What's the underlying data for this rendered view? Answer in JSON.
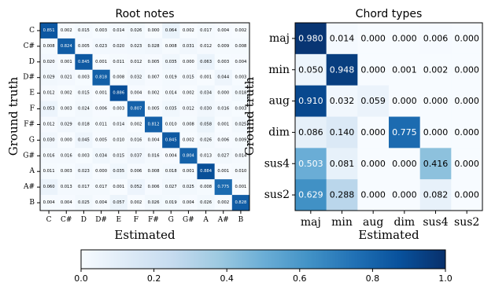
{
  "chart_data": [
    {
      "type": "heatmap",
      "title": "Root notes",
      "xlabel": "Estimated",
      "ylabel": "Ground truth",
      "x_categories": [
        "C",
        "C#",
        "D",
        "D#",
        "E",
        "F",
        "F#",
        "G",
        "G#",
        "A",
        "A#",
        "B"
      ],
      "y_categories": [
        "C",
        "C#",
        "D",
        "D#",
        "E",
        "F",
        "F#",
        "G",
        "G#",
        "A",
        "A#",
        "B"
      ],
      "values": [
        [
          0.851,
          0.002,
          0.015,
          0.003,
          0.014,
          0.026,
          0.0,
          0.064,
          0.002,
          0.017,
          0.004,
          0.002
        ],
        [
          0.008,
          0.824,
          0.005,
          0.023,
          0.02,
          0.023,
          0.028,
          0.008,
          0.031,
          0.012,
          0.009,
          0.008
        ],
        [
          0.02,
          0.001,
          0.845,
          0.001,
          0.011,
          0.012,
          0.005,
          0.035,
          0.0,
          0.063,
          0.003,
          0.004
        ],
        [
          0.029,
          0.021,
          0.003,
          0.818,
          0.008,
          0.032,
          0.007,
          0.019,
          0.015,
          0.001,
          0.044,
          0.003
        ],
        [
          0.012,
          0.002,
          0.015,
          0.001,
          0.886,
          0.004,
          0.002,
          0.014,
          0.002,
          0.034,
          0.0,
          0.018
        ],
        [
          0.053,
          0.003,
          0.024,
          0.006,
          0.003,
          0.807,
          0.005,
          0.035,
          0.012,
          0.03,
          0.016,
          0.003
        ],
        [
          0.012,
          0.029,
          0.018,
          0.011,
          0.014,
          0.002,
          0.812,
          0.01,
          0.008,
          0.058,
          0.001,
          0.025
        ],
        [
          0.03,
          0.0,
          0.045,
          0.005,
          0.01,
          0.016,
          0.004,
          0.845,
          0.002,
          0.026,
          0.006,
          0.009
        ],
        [
          0.016,
          0.016,
          0.003,
          0.034,
          0.015,
          0.037,
          0.016,
          0.004,
          0.804,
          0.013,
          0.027,
          0.014
        ],
        [
          0.011,
          0.003,
          0.023,
          0.0,
          0.035,
          0.006,
          0.008,
          0.018,
          0.001,
          0.884,
          0.001,
          0.01
        ],
        [
          0.06,
          0.013,
          0.017,
          0.017,
          0.001,
          0.052,
          0.006,
          0.027,
          0.025,
          0.008,
          0.775,
          0.001
        ],
        [
          0.004,
          0.004,
          0.025,
          0.004,
          0.057,
          0.002,
          0.026,
          0.019,
          0.004,
          0.026,
          0.002,
          0.828
        ]
      ]
    },
    {
      "type": "heatmap",
      "title": "Chord types",
      "xlabel": "Estimated",
      "ylabel": "Ground truth",
      "x_categories": [
        "maj",
        "min",
        "aug",
        "dim",
        "sus4",
        "sus2"
      ],
      "y_categories": [
        "maj",
        "min",
        "aug",
        "dim",
        "sus4",
        "sus2"
      ],
      "values": [
        [
          0.98,
          0.014,
          0.0,
          0.0,
          0.006,
          0.0
        ],
        [
          0.05,
          0.948,
          0.0,
          0.001,
          0.002,
          0.0
        ],
        [
          0.91,
          0.032,
          0.059,
          0.0,
          0.0,
          0.0
        ],
        [
          0.086,
          0.14,
          0.0,
          0.775,
          0.0,
          0.0
        ],
        [
          0.503,
          0.081,
          0.0,
          0.0,
          0.416,
          0.0
        ],
        [
          0.629,
          0.288,
          0.0,
          0.0,
          0.082,
          0.0
        ]
      ]
    }
  ],
  "colorbar": {
    "colormap": "Blues",
    "range": [
      0.0,
      1.0
    ],
    "ticks": [
      "0.0",
      "0.2",
      "0.4",
      "0.6",
      "0.8",
      "1.0"
    ],
    "stops": [
      "#f7fbff",
      "#deebf7",
      "#c6dbef",
      "#9ecae1",
      "#6baed6",
      "#4292c6",
      "#2171b5",
      "#08519c",
      "#08306b"
    ]
  }
}
